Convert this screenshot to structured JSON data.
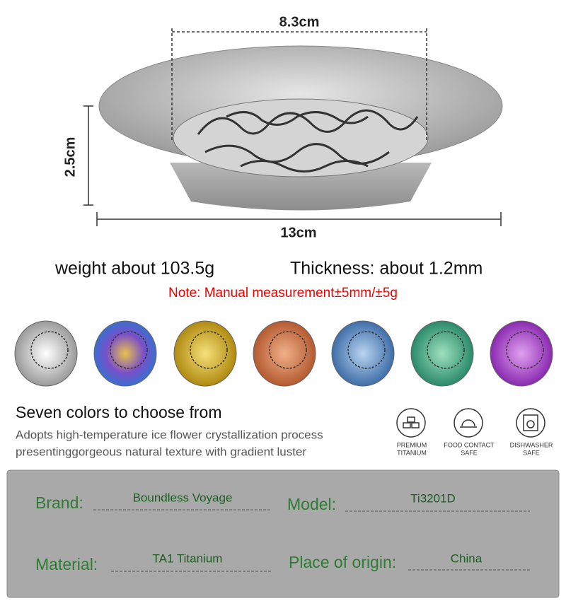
{
  "dimensions": {
    "top_width": "8.3cm",
    "height": "2.5cm",
    "width": "13cm"
  },
  "specs": {
    "weight": "weight about 103.5g",
    "thickness": "Thickness: about 1.2mm",
    "note": "Note: Manual measurement±5mm/±5g"
  },
  "colors": {
    "title": "Seven colors to choose from",
    "description": [
      "Adopts high-temperature ice flower crystallization process",
      "presentinggorgeous natural texture with gradient luster"
    ]
  },
  "badges": [
    {
      "label": [
        "PREMIUM",
        "TITANIUM"
      ]
    },
    {
      "label": [
        "FOOD CONTACT",
        "SAFE"
      ]
    },
    {
      "label": [
        "DISHWASHER",
        "SAFE"
      ]
    }
  ],
  "info": {
    "fields": [
      {
        "label": "Brand:",
        "value": "Boundless Voyage"
      },
      {
        "label": "Model:",
        "value": "Ti3201D"
      },
      {
        "label": "Material:",
        "value": "TA1 Titanium"
      },
      {
        "label": "Place of origin:",
        "value": "China"
      }
    ]
  }
}
